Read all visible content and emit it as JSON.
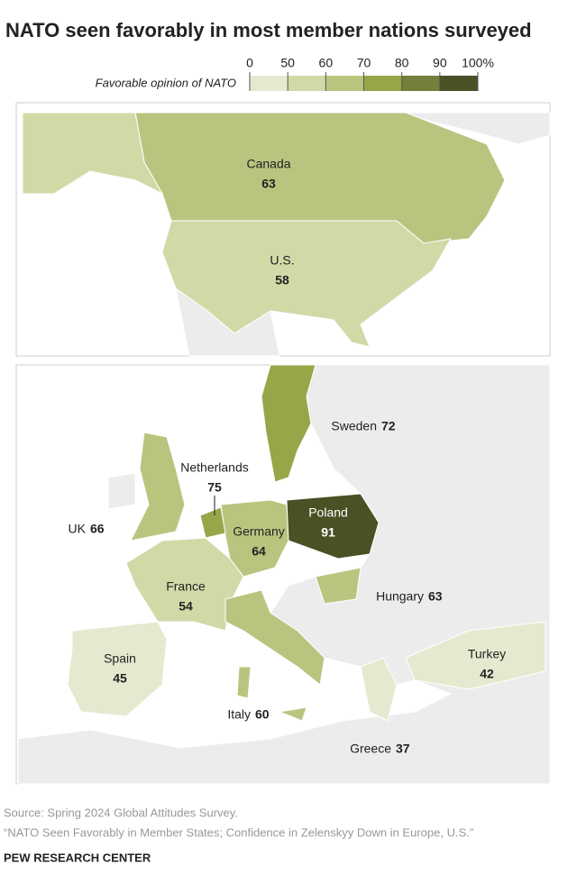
{
  "title": "NATO seen favorably in most member nations surveyed",
  "legend": {
    "label": "Favorable opinion of NATO",
    "ticks": [
      0,
      50,
      60,
      70,
      80,
      90,
      {
        "value": 100,
        "label": "100%"
      }
    ],
    "colors": [
      "#e6e9cf",
      "#d2d9a7",
      "#b9c57f",
      "#98a64a",
      "#737f3b",
      "#4b5125"
    ]
  },
  "panels": [
    {
      "regions": [
        {
          "name": "Canada",
          "value": 63
        },
        {
          "name": "U.S.",
          "value": 58
        }
      ]
    },
    {
      "regions": [
        {
          "name": "Sweden",
          "value": 72
        },
        {
          "name": "Netherlands",
          "value": 75
        },
        {
          "name": "UK",
          "value": 66
        },
        {
          "name": "Poland",
          "value": 91
        },
        {
          "name": "Germany",
          "value": 64
        },
        {
          "name": "France",
          "value": 54
        },
        {
          "name": "Hungary",
          "value": 63
        },
        {
          "name": "Spain",
          "value": 45
        },
        {
          "name": "Turkey",
          "value": 42
        },
        {
          "name": "Italy",
          "value": 60
        },
        {
          "name": "Greece",
          "value": 37
        }
      ]
    }
  ],
  "source": "Source: Spring 2024 Global Attitudes Survey.",
  "note": "“NATO Seen Favorably in Member States; Confidence in Zelenskyy Down in Europe, U.S.”",
  "credit": "PEW RESEARCH CENTER"
}
